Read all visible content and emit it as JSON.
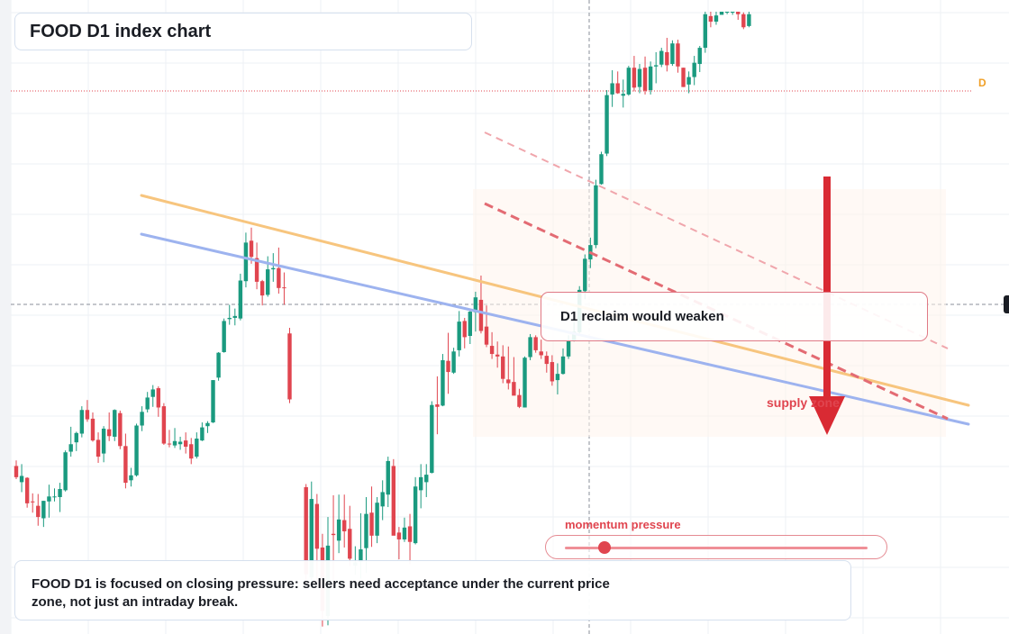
{
  "title": "FOOD D1 index chart",
  "callout": "D1 reclaim would weaken",
  "zone_label": "supply zone",
  "momentum": {
    "label": "momentum pressure",
    "level": 0.13
  },
  "note": "FOOD D1 is focused on closing pressure: sellers need acceptance under the current price zone, not just an intraday break.",
  "badge": "D",
  "colors": {
    "up": "#1a9a7f",
    "down": "#e0454f",
    "trend_orange": "#f7c57e",
    "trend_blue": "#9db3ef",
    "arrow": "#d92a33",
    "dashed_strong": "#e36b73",
    "dashed_light": "#f0a6ac"
  },
  "chart_data": {
    "type": "candlestick",
    "timeframe": "D1",
    "symbol": "FOOD",
    "ylim": [
      0,
      100
    ],
    "grid": true,
    "candles": [
      {
        "o": 27.0,
        "h": 27.9,
        "l": 24.9,
        "c": 25.2
      },
      {
        "o": 24.4,
        "h": 27.3,
        "l": 22.8,
        "c": 25.4
      },
      {
        "o": 25.1,
        "h": 25.2,
        "l": 20.3,
        "c": 21.0
      },
      {
        "o": 21.3,
        "h": 22.6,
        "l": 19.5,
        "c": 21.2
      },
      {
        "o": 20.6,
        "h": 22.5,
        "l": 17.4,
        "c": 18.8
      },
      {
        "o": 18.6,
        "h": 21.4,
        "l": 17.2,
        "c": 21.4
      },
      {
        "o": 21.3,
        "h": 24.0,
        "l": 18.7,
        "c": 22.1
      },
      {
        "o": 22.1,
        "h": 23.4,
        "l": 21.3,
        "c": 22.1
      },
      {
        "o": 22.0,
        "h": 24.3,
        "l": 19.6,
        "c": 23.3
      },
      {
        "o": 23.1,
        "h": 29.5,
        "l": 22.9,
        "c": 29.2
      },
      {
        "o": 29.3,
        "h": 33.3,
        "l": 28.5,
        "c": 30.5
      },
      {
        "o": 30.8,
        "h": 32.5,
        "l": 29.4,
        "c": 32.3
      },
      {
        "o": 32.2,
        "h": 36.6,
        "l": 31.6,
        "c": 36.0
      },
      {
        "o": 36.0,
        "h": 37.6,
        "l": 34.1,
        "c": 34.5
      },
      {
        "o": 34.6,
        "h": 35.6,
        "l": 30.9,
        "c": 31.1
      },
      {
        "o": 31.2,
        "h": 32.4,
        "l": 27.5,
        "c": 28.5
      },
      {
        "o": 29.0,
        "h": 33.4,
        "l": 27.6,
        "c": 33.0
      },
      {
        "o": 32.9,
        "h": 35.6,
        "l": 31.0,
        "c": 31.8
      },
      {
        "o": 31.7,
        "h": 36.1,
        "l": 31.0,
        "c": 36.0
      },
      {
        "o": 35.5,
        "h": 35.9,
        "l": 29.7,
        "c": 30.2
      },
      {
        "o": 30.2,
        "h": 32.2,
        "l": 23.4,
        "c": 24.3
      },
      {
        "o": 24.7,
        "h": 26.7,
        "l": 23.7,
        "c": 25.5
      },
      {
        "o": 25.5,
        "h": 33.8,
        "l": 25.3,
        "c": 33.5
      },
      {
        "o": 33.5,
        "h": 36.6,
        "l": 32.6,
        "c": 35.7
      },
      {
        "o": 36.1,
        "h": 38.9,
        "l": 35.6,
        "c": 38.0
      },
      {
        "o": 38.1,
        "h": 40.0,
        "l": 36.5,
        "c": 39.3
      },
      {
        "o": 39.5,
        "h": 39.8,
        "l": 34.9,
        "c": 36.4
      },
      {
        "o": 36.6,
        "h": 37.1,
        "l": 30.4,
        "c": 30.6
      },
      {
        "o": 30.6,
        "h": 32.8,
        "l": 30.0,
        "c": 30.5
      },
      {
        "o": 30.3,
        "h": 33.1,
        "l": 29.9,
        "c": 31.0
      },
      {
        "o": 30.5,
        "h": 31.7,
        "l": 29.6,
        "c": 30.9
      },
      {
        "o": 31.1,
        "h": 32.4,
        "l": 29.0,
        "c": 30.1
      },
      {
        "o": 30.5,
        "h": 31.5,
        "l": 27.3,
        "c": 28.2
      },
      {
        "o": 28.5,
        "h": 32.4,
        "l": 28.2,
        "c": 31.4
      },
      {
        "o": 31.1,
        "h": 34.0,
        "l": 31.0,
        "c": 33.2
      },
      {
        "o": 33.4,
        "h": 34.2,
        "l": 32.3,
        "c": 33.9
      },
      {
        "o": 34.0,
        "h": 40.8,
        "l": 33.9,
        "c": 40.8
      },
      {
        "o": 41.2,
        "h": 45.3,
        "l": 40.7,
        "c": 45.2
      },
      {
        "o": 45.3,
        "h": 50.7,
        "l": 45.2,
        "c": 50.3
      },
      {
        "o": 50.6,
        "h": 52.9,
        "l": 49.7,
        "c": 50.8
      },
      {
        "o": 50.8,
        "h": 52.3,
        "l": 49.6,
        "c": 51.1
      },
      {
        "o": 50.7,
        "h": 57.9,
        "l": 50.4,
        "c": 56.8
      },
      {
        "o": 56.7,
        "h": 64.5,
        "l": 55.7,
        "c": 62.9
      },
      {
        "o": 63.2,
        "h": 65.3,
        "l": 59.5,
        "c": 60.6
      },
      {
        "o": 60.4,
        "h": 62.9,
        "l": 55.4,
        "c": 56.6
      },
      {
        "o": 56.7,
        "h": 56.9,
        "l": 52.8,
        "c": 54.4
      },
      {
        "o": 54.5,
        "h": 60.7,
        "l": 54.2,
        "c": 58.6
      },
      {
        "o": 58.6,
        "h": 61.2,
        "l": 56.6,
        "c": 58.8
      },
      {
        "o": 58.8,
        "h": 62.1,
        "l": 54.7,
        "c": 55.6
      },
      {
        "o": 55.7,
        "h": 58.1,
        "l": 52.9,
        "c": 55.6
      },
      {
        "o": 48.3,
        "h": 49.2,
        "l": 37.1,
        "c": 37.7
      },
      {
        "o": null
      },
      {
        "o": null
      },
      {
        "o": 23.6,
        "h": 24.1,
        "l": 8.0,
        "c": 9.6
      },
      {
        "o": 9.1,
        "h": 24.5,
        "l": 8.0,
        "c": 21.7
      },
      {
        "o": 20.9,
        "h": 22.5,
        "l": 8.0,
        "c": 13.7
      },
      {
        "o": 13.9,
        "h": 16.1,
        "l": 1.2,
        "c": 3.7
      },
      {
        "o": 2.9,
        "h": 18.8,
        "l": 1.4,
        "c": 14.2
      },
      {
        "o": 16.1,
        "h": 22.3,
        "l": 7.7,
        "c": 15.9
      },
      {
        "o": 15.0,
        "h": 22.4,
        "l": 13.0,
        "c": 18.4
      },
      {
        "o": 18.3,
        "h": 22.4,
        "l": 13.9,
        "c": 16.5
      },
      {
        "o": 16.9,
        "h": 20.6,
        "l": 10.9,
        "c": 12.1
      },
      {
        "o": 11.0,
        "h": 14.1,
        "l": 9.5,
        "c": 11.5
      },
      {
        "o": 11.6,
        "h": 19.4,
        "l": 8.9,
        "c": 13.6
      },
      {
        "o": 13.8,
        "h": 22.0,
        "l": 9.8,
        "c": 19.3
      },
      {
        "o": 19.5,
        "h": 23.7,
        "l": 14.0,
        "c": 15.8
      },
      {
        "o": 15.8,
        "h": 22.0,
        "l": 14.6,
        "c": 21.1
      },
      {
        "o": 20.5,
        "h": 24.7,
        "l": 18.3,
        "c": 22.8
      },
      {
        "o": 22.4,
        "h": 28.5,
        "l": 20.4,
        "c": 27.8
      },
      {
        "o": 27.0,
        "h": 28.1,
        "l": 15.9,
        "c": 15.8
      },
      {
        "o": 16.3,
        "h": 17.2,
        "l": 12.0,
        "c": 15.2
      },
      {
        "o": 15.2,
        "h": 18.7,
        "l": 14.8,
        "c": 17.1
      },
      {
        "o": 17.3,
        "h": 19.3,
        "l": 11.2,
        "c": 14.8
      },
      {
        "o": 14.6,
        "h": 25.2,
        "l": 14.4,
        "c": 23.7
      },
      {
        "o": 23.1,
        "h": 27.3,
        "l": 20.2,
        "c": 25.2
      },
      {
        "o": 24.4,
        "h": 27.3,
        "l": 22.0,
        "c": 25.6
      },
      {
        "o": 25.9,
        "h": 37.4,
        "l": 25.8,
        "c": 36.8
      },
      {
        "o": 36.9,
        "h": 41.4,
        "l": 32.1,
        "c": 36.5
      },
      {
        "o": 36.7,
        "h": 45.0,
        "l": 36.6,
        "c": 44.0
      },
      {
        "o": 43.9,
        "h": 48.4,
        "l": 38.6,
        "c": 42.1
      },
      {
        "o": 42.0,
        "h": 46.0,
        "l": 41.8,
        "c": 45.4
      },
      {
        "o": 45.6,
        "h": 51.9,
        "l": 44.6,
        "c": 50.2
      },
      {
        "o": 50.3,
        "h": 50.8,
        "l": 45.9,
        "c": 47.7
      },
      {
        "o": 47.9,
        "h": 51.9,
        "l": 46.6,
        "c": 51.8
      },
      {
        "o": 51.7,
        "h": 55.0,
        "l": 48.6,
        "c": 54.1
      },
      {
        "o": 53.7,
        "h": 57.6,
        "l": 48.3,
        "c": 48.7
      },
      {
        "o": 49.4,
        "h": 52.8,
        "l": 46.1,
        "c": 46.5
      },
      {
        "o": 46.3,
        "h": 48.5,
        "l": 44.2,
        "c": 45.0
      },
      {
        "o": 44.9,
        "h": 47.0,
        "l": 42.8,
        "c": 44.6
      },
      {
        "o": 44.6,
        "h": 46.4,
        "l": 40.3,
        "c": 41.0
      },
      {
        "o": 40.9,
        "h": 46.2,
        "l": 39.3,
        "c": 40.3
      },
      {
        "o": 40.5,
        "h": 44.5,
        "l": 38.7,
        "c": 38.3
      },
      {
        "o": 38.4,
        "h": 39.4,
        "l": 36.3,
        "c": 36.5
      },
      {
        "o": 36.4,
        "h": 44.6,
        "l": 36.4,
        "c": 44.4
      },
      {
        "o": 44.5,
        "h": 48.2,
        "l": 44.0,
        "c": 47.7
      },
      {
        "o": 47.7,
        "h": 48.0,
        "l": 45.2,
        "c": 45.6
      },
      {
        "o": 45.4,
        "h": 47.3,
        "l": 44.2,
        "c": 44.8
      },
      {
        "o": 44.7,
        "h": 45.4,
        "l": 42.0,
        "c": 43.4
      },
      {
        "o": 43.7,
        "h": 44.8,
        "l": 39.9,
        "c": 40.6
      },
      {
        "o": 40.8,
        "h": 43.5,
        "l": 38.5,
        "c": 41.8
      },
      {
        "o": 41.8,
        "h": 45.9,
        "l": 41.7,
        "c": 44.6
      },
      {
        "o": 44.6,
        "h": 48.0,
        "l": 44.2,
        "c": 47.2
      },
      {
        "o": 47.2,
        "h": 50.1,
        "l": 47.0,
        "c": 48.6
      },
      {
        "o": 48.5,
        "h": 55.9,
        "l": 48.3,
        "c": 55.3
      },
      {
        "o": 55.1,
        "h": 61.0,
        "l": 53.8,
        "c": 60.3
      },
      {
        "o": 60.2,
        "h": 63.7,
        "l": 58.8,
        "c": 62.5
      },
      {
        "o": 62.5,
        "h": 73.0,
        "l": 62.0,
        "c": 72.1
      },
      {
        "o": 72.3,
        "h": 77.5,
        "l": 72.2,
        "c": 77.1
      },
      {
        "o": 77.2,
        "h": 87.4,
        "l": 76.8,
        "c": 86.6
      },
      {
        "o": 86.7,
        "h": 90.6,
        "l": 84.7,
        "c": 88.5
      },
      {
        "o": 88.5,
        "h": 90.4,
        "l": 86.8,
        "c": 86.9
      },
      {
        "o": 86.5,
        "h": 89.1,
        "l": 84.6,
        "c": 86.8
      },
      {
        "o": 86.7,
        "h": 91.3,
        "l": 86.5,
        "c": 91.0
      },
      {
        "o": 91.0,
        "h": 92.9,
        "l": 87.2,
        "c": 87.8
      },
      {
        "o": 87.9,
        "h": 91.6,
        "l": 86.9,
        "c": 90.8
      },
      {
        "o": 91.0,
        "h": 92.8,
        "l": 86.7,
        "c": 87.3
      },
      {
        "o": 87.4,
        "h": 92.0,
        "l": 86.7,
        "c": 91.2
      },
      {
        "o": 91.2,
        "h": 93.5,
        "l": 88.5,
        "c": 91.4
      },
      {
        "o": 91.5,
        "h": 94.2,
        "l": 91.1,
        "c": 93.7
      },
      {
        "o": 93.5,
        "h": 95.8,
        "l": 90.4,
        "c": 91.4
      },
      {
        "o": 91.6,
        "h": 95.4,
        "l": 91.3,
        "c": 94.9
      },
      {
        "o": 94.9,
        "h": 95.5,
        "l": 90.2,
        "c": 91.2
      },
      {
        "o": 91.0,
        "h": 91.0,
        "l": 87.9,
        "c": 87.9
      },
      {
        "o": 88.3,
        "h": 90.4,
        "l": 86.9,
        "c": 89.5
      },
      {
        "o": 89.5,
        "h": 92.9,
        "l": 88.2,
        "c": 91.8
      },
      {
        "o": 91.6,
        "h": 94.5,
        "l": 90.3,
        "c": 94.2
      },
      {
        "o": 94.2,
        "h": 100.0,
        "l": 93.4,
        "c": 99.6
      },
      {
        "o": 99.3,
        "h": 100.0,
        "l": 97.5,
        "c": 98.4
      },
      {
        "o": 98.4,
        "h": 100.0,
        "l": 97.9,
        "c": 99.4
      },
      {
        "o": 99.5,
        "h": 100.0,
        "l": 99.6,
        "c": 100.0
      },
      {
        "o": 100.0,
        "h": 100.0,
        "l": 99.6,
        "c": 100.0
      },
      {
        "o": 100.0,
        "h": 100.0,
        "l": 99.5,
        "c": 100.0
      },
      {
        "o": 100.0,
        "h": 100.0,
        "l": 98.7,
        "c": 99.6
      },
      {
        "o": 99.6,
        "h": 99.9,
        "l": 97.2,
        "c": 97.5
      },
      {
        "o": 97.7,
        "h": 100.0,
        "l": 97.5,
        "c": 99.6
      }
    ]
  }
}
